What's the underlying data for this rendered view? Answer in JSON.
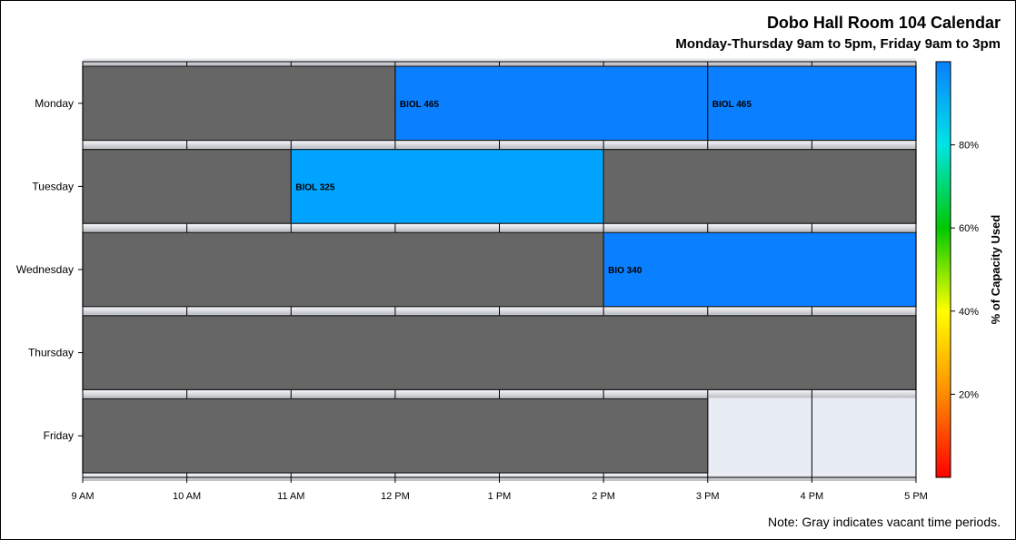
{
  "chart_data": {
    "type": "timeline",
    "title": "Dobo Hall Room 104 Calendar",
    "subtitle": "Monday-Thursday 9am to 5pm, Friday 9am to 3pm",
    "note": "Note: Gray indicates vacant time periods.",
    "x_range": [
      9,
      17
    ],
    "x_ticks": [
      {
        "value": 9,
        "label": "9 AM"
      },
      {
        "value": 10,
        "label": "10 AM"
      },
      {
        "value": 11,
        "label": "11 AM"
      },
      {
        "value": 12,
        "label": "12 PM"
      },
      {
        "value": 13,
        "label": "1 PM"
      },
      {
        "value": 14,
        "label": "2 PM"
      },
      {
        "value": 15,
        "label": "3 PM"
      },
      {
        "value": 16,
        "label": "4 PM"
      },
      {
        "value": 17,
        "label": "5 PM"
      }
    ],
    "rows": [
      {
        "day": "Monday",
        "segments": [
          {
            "start": 9,
            "end": 12,
            "label": "",
            "vacant": true
          },
          {
            "start": 12,
            "end": 15,
            "label": "BIOL 465",
            "vacant": false,
            "color": "#0a7fff"
          },
          {
            "start": 15,
            "end": 17,
            "label": "BIOL 465",
            "vacant": false,
            "color": "#0a7fff"
          }
        ]
      },
      {
        "day": "Tuesday",
        "segments": [
          {
            "start": 9,
            "end": 11,
            "label": "",
            "vacant": true
          },
          {
            "start": 11,
            "end": 14,
            "label": "BIOL 325",
            "vacant": false,
            "color": "#00a4ff"
          },
          {
            "start": 14,
            "end": 17,
            "label": "",
            "vacant": true
          }
        ]
      },
      {
        "day": "Wednesday",
        "segments": [
          {
            "start": 9,
            "end": 14,
            "label": "",
            "vacant": true
          },
          {
            "start": 14,
            "end": 17,
            "label": "BIO 340",
            "vacant": false,
            "color": "#0a7fff"
          }
        ]
      },
      {
        "day": "Thursday",
        "segments": [
          {
            "start": 9,
            "end": 17,
            "label": "",
            "vacant": true
          }
        ]
      },
      {
        "day": "Friday",
        "segments": [
          {
            "start": 9,
            "end": 15,
            "label": "",
            "vacant": true
          }
        ]
      }
    ],
    "colorbar": {
      "label": "% of Capacity Used",
      "ticks": [
        {
          "value": 20,
          "label": "20%"
        },
        {
          "value": 40,
          "label": "40%"
        },
        {
          "value": 60,
          "label": "60%"
        },
        {
          "value": 80,
          "label": "80%"
        }
      ],
      "range": [
        0,
        100
      ],
      "colors": [
        "#ff0000",
        "#ff8c00",
        "#ffff00",
        "#00c800",
        "#00e5e5",
        "#0a7fff"
      ]
    },
    "colors": {
      "vacant": "#666666",
      "plot_background": "#e8ecf5",
      "row_band": "#b9bcc2"
    },
    "grid": true
  }
}
